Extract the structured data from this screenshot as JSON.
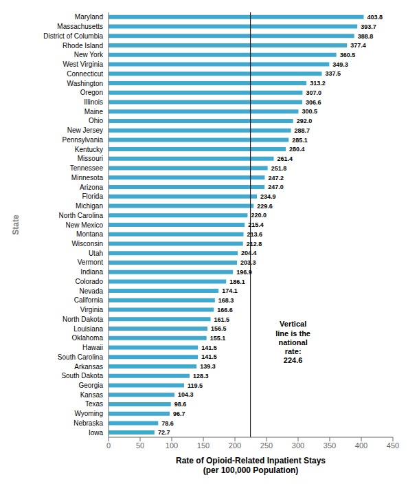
{
  "chart_data": {
    "type": "bar",
    "orientation": "horizontal",
    "x_label": "Rate of Opioid-Related Inpatient Stays\n(per 100,000 Population)",
    "y_label": "State",
    "categories": [
      "Maryland",
      "Massachusetts",
      "District of Columbia",
      "Rhode Island",
      "New York",
      "West Virginia",
      "Connecticut",
      "Washington",
      "Oregon",
      "Illinois",
      "Maine",
      "Ohio",
      "New Jersey",
      "Pennsylvania",
      "Kentucky",
      "Missouri",
      "Tennessee",
      "Minnesota",
      "Arizona",
      "Florida",
      "Michigan",
      "North Carolina",
      "New Mexico",
      "Montana",
      "Wisconsin",
      "Utah",
      "Vermont",
      "Indiana",
      "Colorado",
      "Nevada",
      "California",
      "Virginia",
      "North Dakota",
      "Louisiana",
      "Oklahoma",
      "Hawaii",
      "South Carolina",
      "Arkansas",
      "South Dakota",
      "Georgia",
      "Kansas",
      "Texas",
      "Wyoming",
      "Nebraska",
      "Iowa"
    ],
    "values": [
      403.8,
      393.7,
      388.8,
      377.4,
      360.5,
      349.3,
      337.5,
      313.2,
      307.0,
      306.6,
      300.5,
      292.0,
      288.7,
      285.1,
      280.4,
      261.4,
      251.8,
      247.2,
      247.0,
      234.9,
      229.6,
      220.0,
      215.4,
      213.6,
      212.8,
      204.4,
      203.3,
      196.9,
      186.1,
      174.1,
      168.3,
      166.6,
      161.5,
      156.5,
      155.1,
      141.5,
      141.5,
      139.3,
      128.3,
      119.5,
      104.3,
      98.6,
      96.7,
      78.6,
      72.7
    ],
    "value_labels": [
      "403.8",
      "393.7",
      "388.8",
      "377.4",
      "360.5",
      "349.3",
      "337.5",
      "313.2",
      "307.0",
      "306.6",
      "300.5",
      "292.0",
      "288.7",
      "285.1",
      "280.4",
      "261.4",
      "251.8",
      "247.2",
      "247.0",
      "234.9",
      "229.6",
      "220.0",
      "215.4",
      "213.6",
      "212.8",
      "204.4",
      "203.3",
      "196.9",
      "186.1",
      "174.1",
      "168.3",
      "166.6",
      "161.5",
      "156.5",
      "155.1",
      "141.5",
      "141.5",
      "139.3",
      "128.3",
      "119.5",
      "104.3",
      "98.6",
      "96.7",
      "78.6",
      "72.7"
    ],
    "color": "#3fa9d0",
    "data_labels": true,
    "vline": 224.6,
    "annotations": [
      "Vertical\nline is the\nnational\nrate:\n224.6"
    ],
    "xlim": [
      0,
      450
    ],
    "xticks": [
      0,
      50,
      100,
      150,
      200,
      250,
      300,
      350,
      400,
      450
    ],
    "grid": false
  }
}
